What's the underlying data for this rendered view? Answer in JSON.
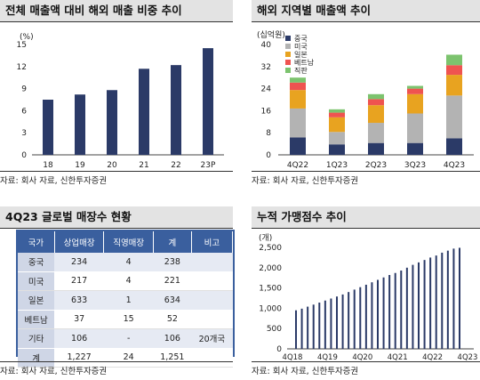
{
  "panels": {
    "p1": {
      "title": "전체 매출액 대비 해외 매출 비중 추이",
      "unit": "(%)",
      "source": "자료: 회사 자료, 신한투자증권"
    },
    "p2": {
      "title": "해외 지역별 매출액 추이",
      "unit": "(십억원)",
      "source": "자료: 회사 자료, 신한투자증권"
    },
    "p3": {
      "title": "4Q23 글로벌 매장수 현황",
      "source": "자료: 회사 자료, 신한투자증권"
    },
    "p4": {
      "title": "누적 가맹점수 추이",
      "unit": "(개)",
      "source": "자료: 회사 자료, 신한투자증권"
    }
  },
  "chart_data": [
    {
      "type": "bar",
      "title": "전체 매출액 대비 해외 매출 비중 추이",
      "ylabel": "(%)",
      "categories": [
        "18",
        "19",
        "20",
        "21",
        "22",
        "23P"
      ],
      "values": [
        7.5,
        8.2,
        8.8,
        11.7,
        12.2,
        14.5
      ],
      "ylim": [
        0,
        15
      ],
      "yticks": [
        0,
        3,
        6,
        9,
        12,
        15
      ],
      "color": "#2b3a67",
      "grid": false
    },
    {
      "type": "bar",
      "stacked": true,
      "title": "해외 지역별 매출액 추이",
      "ylabel": "(십억원)",
      "categories": [
        "4Q22",
        "1Q23",
        "2Q23",
        "3Q23",
        "4Q23"
      ],
      "ylim": [
        0,
        40
      ],
      "yticks": [
        0,
        8,
        16,
        24,
        32,
        40
      ],
      "legend_position": "top-left",
      "series": [
        {
          "name": "중국",
          "color": "#2b3a67",
          "values": [
            6.3,
            3.8,
            4.3,
            4.3,
            6.0
          ]
        },
        {
          "name": "미국",
          "color": "#b3b3b3",
          "values": [
            10.5,
            4.5,
            7.3,
            10.7,
            15.5
          ]
        },
        {
          "name": "일본",
          "color": "#e8a320",
          "values": [
            6.7,
            5.3,
            6.4,
            7.0,
            7.5
          ]
        },
        {
          "name": "베트남",
          "color": "#ef5350",
          "values": [
            2.7,
            1.7,
            2.2,
            2.0,
            3.5
          ]
        },
        {
          "name": "직판",
          "color": "#7cc36e",
          "values": [
            1.8,
            1.2,
            1.8,
            1.0,
            3.8
          ]
        }
      ],
      "grid": false
    },
    {
      "type": "table",
      "title": "4Q23 글로벌 매장수 현황",
      "columns": [
        "국가",
        "상업매장",
        "직영매장",
        "계",
        "비고"
      ],
      "rows": [
        [
          "중국",
          "234",
          "4",
          "238",
          ""
        ],
        [
          "미국",
          "217",
          "4",
          "221",
          ""
        ],
        [
          "일본",
          "633",
          "1",
          "634",
          ""
        ],
        [
          "베트남",
          "37",
          "15",
          "52",
          ""
        ],
        [
          "기타",
          "106",
          "-",
          "106",
          "20개국"
        ],
        [
          "계",
          "1,227",
          "24",
          "1,251",
          ""
        ]
      ]
    },
    {
      "type": "bar",
      "title": "누적 가맹점수 추이",
      "ylabel": "(개)",
      "x_tick_labels": [
        "4Q18",
        "4Q19",
        "4Q20",
        "4Q21",
        "4Q22",
        "4Q23"
      ],
      "values": [
        950,
        990,
        1040,
        1090,
        1140,
        1190,
        1240,
        1290,
        1340,
        1400,
        1460,
        1520,
        1580,
        1640,
        1700,
        1760,
        1820,
        1870,
        1930,
        2000,
        2070,
        2130,
        2190,
        2250,
        2300,
        2370,
        2420,
        2470,
        2490
      ],
      "ylim": [
        0,
        2500
      ],
      "yticks": [
        0,
        500,
        1000,
        1500,
        2000,
        2500
      ],
      "color": "#2b3a67",
      "grid": false
    }
  ]
}
